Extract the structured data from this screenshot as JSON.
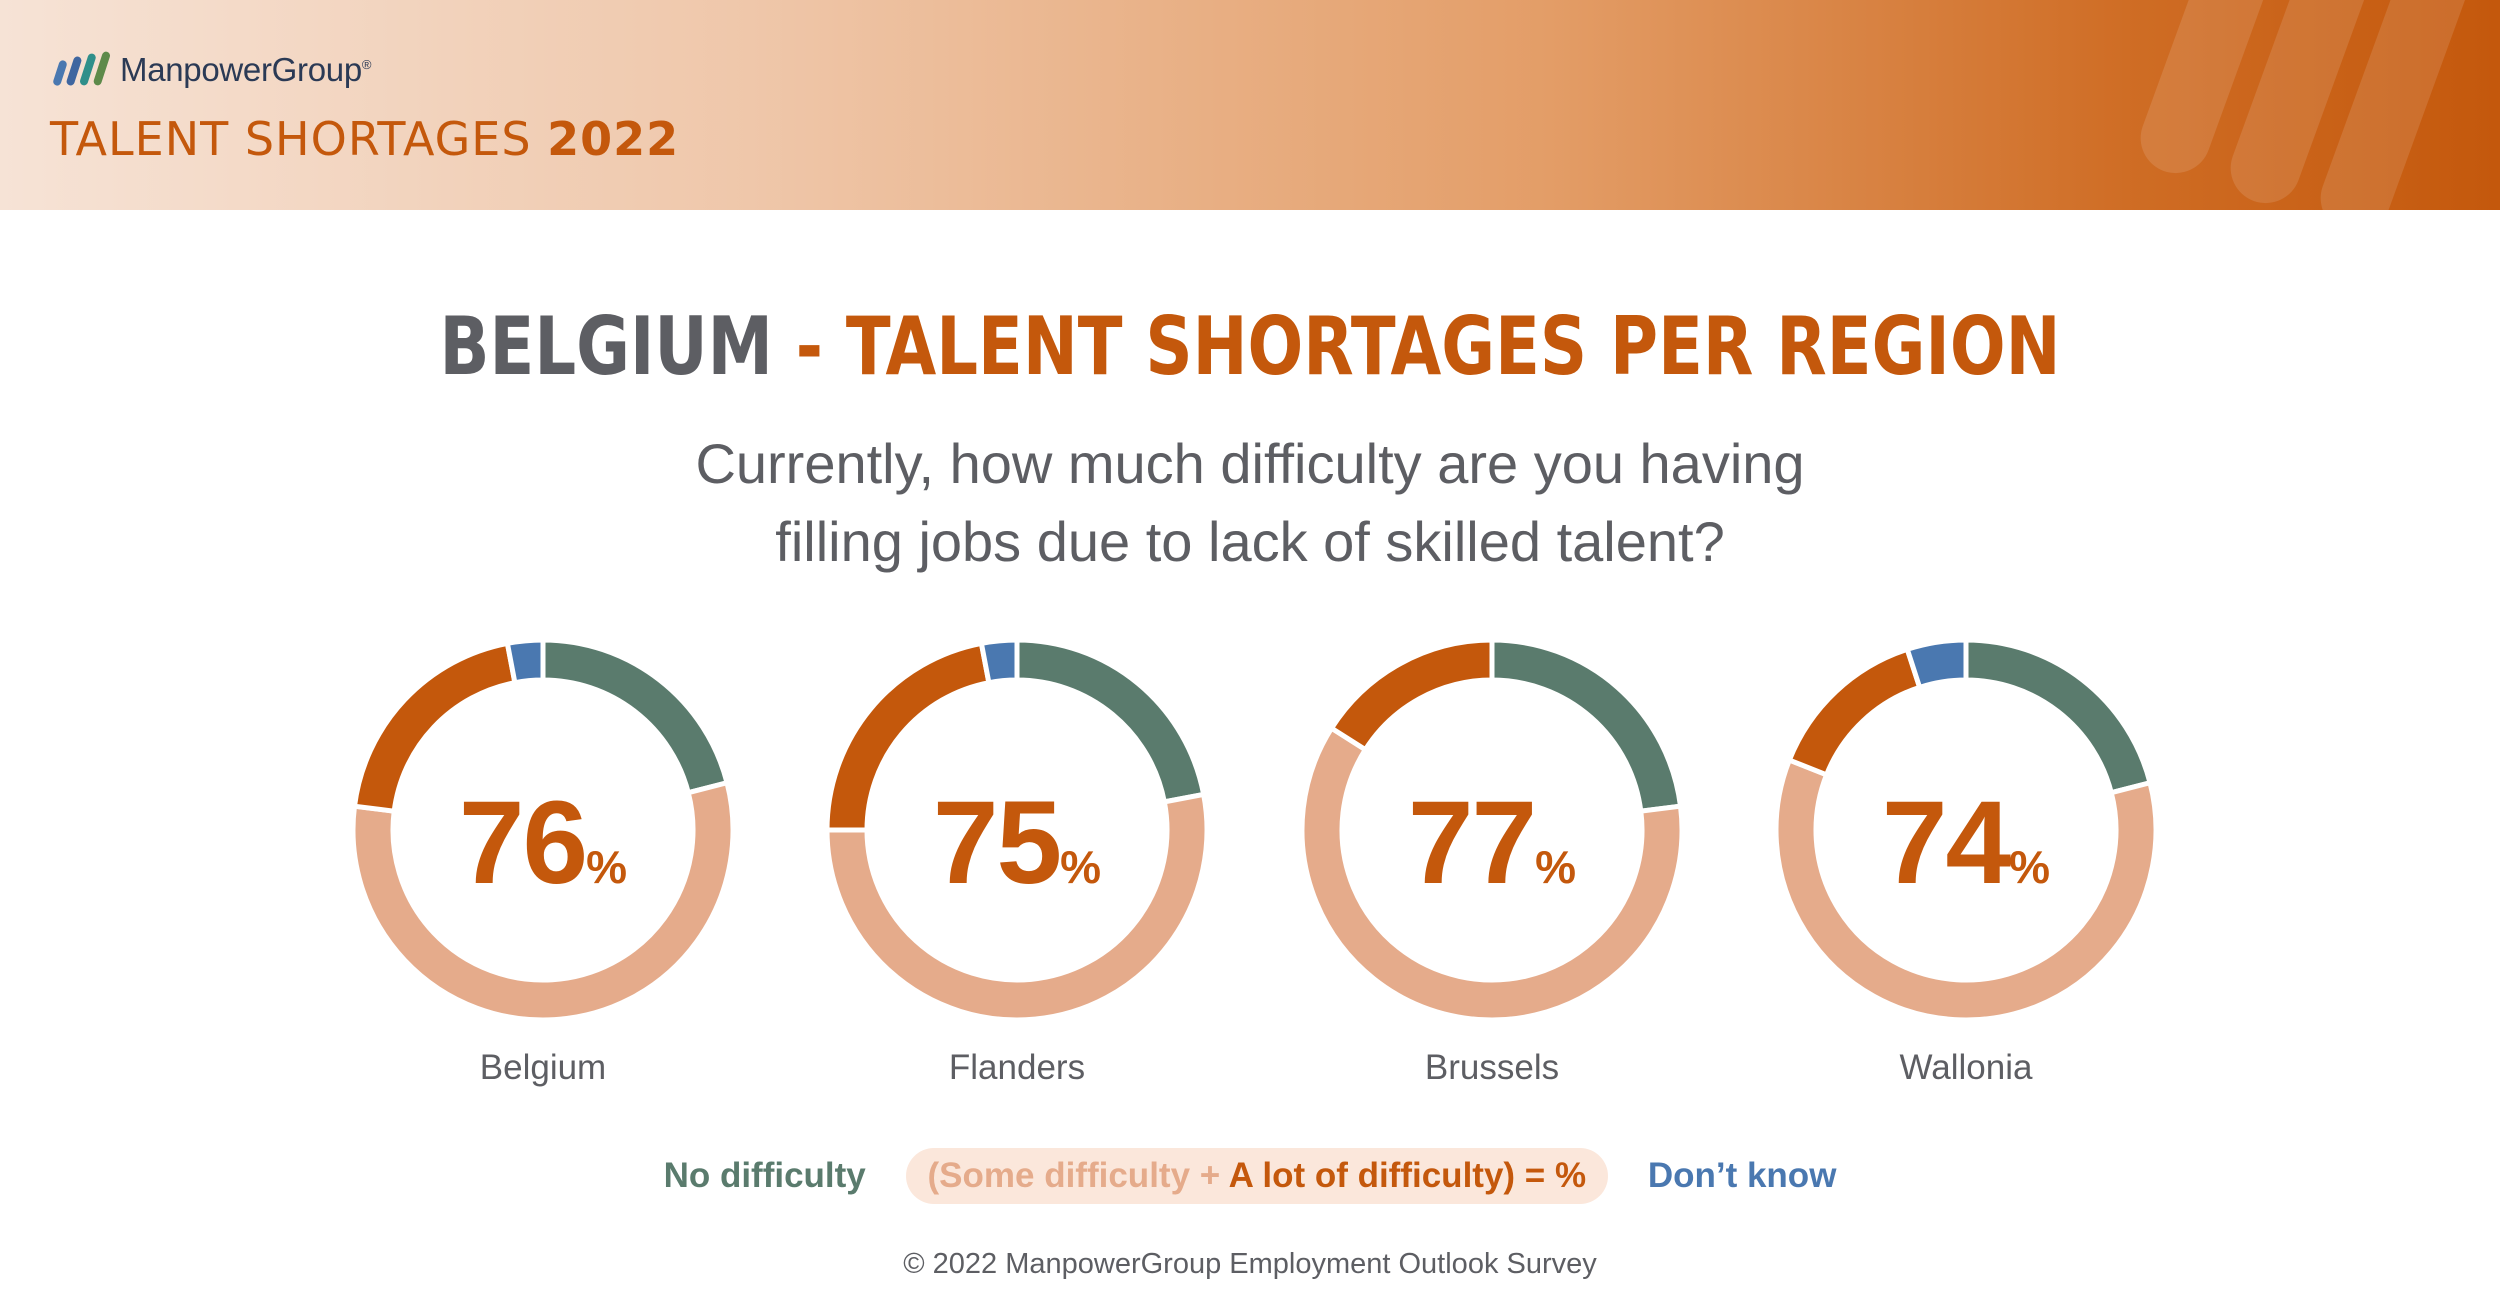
{
  "header": {
    "logo_text": "ManpowerGroup",
    "logo_reg": "®",
    "title_text": "TALENT SHORTAGES ",
    "title_year": "2022"
  },
  "heading": {
    "country": "BELGIUM",
    "separator": " - ",
    "rest": "TALENT SHORTAGES PER REGION"
  },
  "question": {
    "line1": "Currently, how much difficulty are you having",
    "line2": "filling jobs due to lack of skilled talent?"
  },
  "colors": {
    "no_difficulty": "#5a7b6d",
    "some_difficulty": "#e5ab8b",
    "a_lot_of_difficulty": "#c4580c",
    "dont_know": "#4a78b0"
  },
  "chart_data": {
    "type": "pie",
    "segment_order": [
      "no_difficulty",
      "some_difficulty",
      "a_lot_of_difficulty",
      "dont_know"
    ],
    "charts": [
      {
        "region": "Belgium",
        "value": "76",
        "unit": "%",
        "segments": {
          "no_difficulty": 21,
          "some_difficulty": 56,
          "a_lot_of_difficulty": 20,
          "dont_know": 3
        }
      },
      {
        "region": "Flanders",
        "value": "75",
        "unit": "%",
        "segments": {
          "no_difficulty": 22,
          "some_difficulty": 53,
          "a_lot_of_difficulty": 22,
          "dont_know": 3
        }
      },
      {
        "region": "Brussels",
        "value": "77",
        "unit": "%",
        "segments": {
          "no_difficulty": 23,
          "some_difficulty": 61,
          "a_lot_of_difficulty": 16,
          "dont_know": 0
        }
      },
      {
        "region": "Wallonia",
        "value": "74",
        "unit": "%",
        "segments": {
          "no_difficulty": 21,
          "some_difficulty": 60,
          "a_lot_of_difficulty": 14,
          "dont_know": 5
        }
      }
    ]
  },
  "legend": {
    "no_difficulty": "No difficulty",
    "some_difficulty": "(Some difficulty",
    "plus": " + ",
    "a_lot_of_difficulty": "A lot of difficulty",
    "equals": ") = %",
    "dont_know": "Don’t know"
  },
  "footer": "© 2022 ManpowerGroup Employment Outlook Survey"
}
